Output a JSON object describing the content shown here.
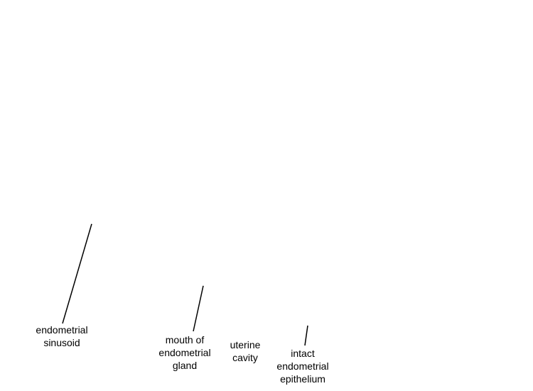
{
  "labels": {
    "sinusoid": [
      "endometrial",
      "sinusoid"
    ],
    "gland": [
      "mouth of",
      "endometrial",
      "gland"
    ],
    "cavity": [
      "uterine",
      "cavity"
    ],
    "epithelium": [
      "intact",
      "endometrial",
      "epithelium"
    ]
  },
  "colors": {
    "background": "#ffffff",
    "text": "#000000",
    "leader_line": "#000000"
  }
}
